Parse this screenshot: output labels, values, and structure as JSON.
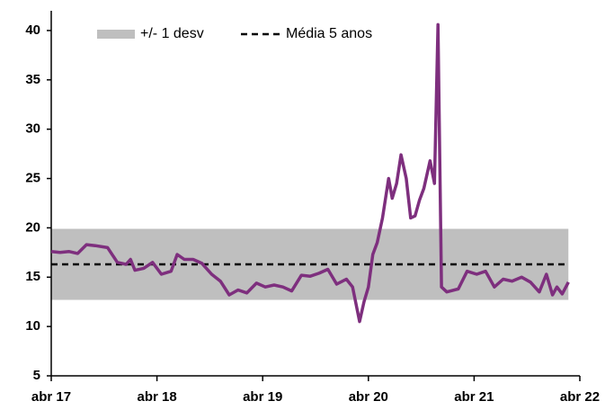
{
  "chart_data": {
    "type": "line",
    "color": "#7e2f7e",
    "x": [
      0,
      1,
      2,
      3,
      4,
      5,
      6.4,
      7.5,
      8.5,
      9,
      9.5,
      10.5,
      11.5,
      12.5,
      13.6,
      14.3,
      15.1,
      16.1,
      17.1,
      18.2,
      19.2,
      20.2,
      21.2,
      22.2,
      23.3,
      24.3,
      25.3,
      26.3,
      27.3,
      28.4,
      29.4,
      30.4,
      31.4,
      32.4,
      33.5,
      34.2,
      35,
      35.5,
      36,
      36.5,
      37,
      37.6,
      38.3,
      38.7,
      39.2,
      39.7,
      40.3,
      40.8,
      41.3,
      41.8,
      42.3,
      43,
      43.5,
      43.9,
      44.3,
      44.9,
      46.2,
      47.2,
      48.3,
      49.3,
      50.3,
      51.3,
      52.3,
      53.4,
      54.4,
      55.4,
      56.2,
      56.9,
      57.4,
      58,
      58.7
    ],
    "values": [
      17.6,
      17.5,
      17.6,
      17.4,
      18.3,
      18.2,
      18.0,
      16.5,
      16.3,
      16.8,
      15.7,
      15.9,
      16.5,
      15.3,
      15.6,
      17.3,
      16.8,
      16.8,
      16.4,
      15.3,
      14.6,
      13.2,
      13.7,
      13.4,
      14.4,
      14.0,
      14.2,
      14.0,
      13.6,
      15.2,
      15.1,
      15.4,
      15.8,
      14.3,
      14.8,
      14.0,
      10.5,
      12.5,
      14.0,
      17.3,
      18.5,
      21.0,
      25.0,
      23.0,
      24.5,
      27.4,
      25.0,
      21.0,
      21.2,
      22.8,
      24.0,
      26.8,
      24.5,
      40.6,
      14.0,
      13.5,
      13.8,
      15.6,
      15.3,
      15.6,
      14.0,
      14.8,
      14.6,
      15.0,
      14.5,
      13.5,
      15.3,
      13.2,
      14.0,
      13.3,
      14.5
    ],
    "band": {
      "name": "+/- 1 desv",
      "values": [
        12.7,
        19.9
      ],
      "color": "#bfbfbf"
    },
    "mean": {
      "name": "Média 5 anos",
      "value": 16.3,
      "color": "#000000"
    },
    "xlim": [
      0,
      60
    ],
    "xticks": [
      {
        "value": 0,
        "label": "abr 17"
      },
      {
        "value": 12,
        "label": "abr 18"
      },
      {
        "value": 24,
        "label": "abr 19"
      },
      {
        "value": 36,
        "label": "abr 20"
      },
      {
        "value": 48,
        "label": "abr 21"
      },
      {
        "value": 60,
        "label": "abr 22"
      }
    ],
    "ylim": [
      5,
      42
    ],
    "yticks": [
      5,
      10,
      15,
      20,
      25,
      30,
      35,
      40
    ],
    "grid": false
  }
}
